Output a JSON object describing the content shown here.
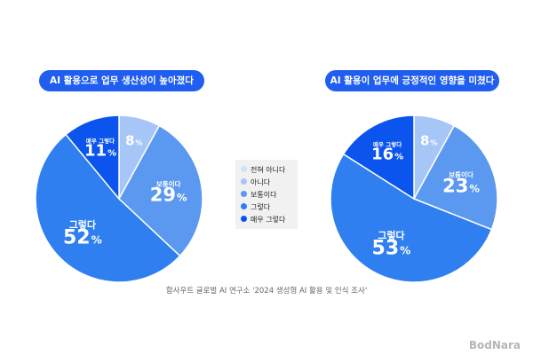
{
  "chart_data": [
    {
      "type": "pie",
      "title": "AI 활용으로 업무 생산성이 높아졌다",
      "slices": [
        {
          "label": "전혀 아니다",
          "value": 0
        },
        {
          "label": "아니다",
          "value": 8,
          "display_label": ""
        },
        {
          "label": "보통이다",
          "value": 29,
          "display_label": "보통이다"
        },
        {
          "label": "그렇다",
          "value": 52,
          "display_label": "그렇다"
        },
        {
          "label": "매우 그렇다",
          "value": 11,
          "display_label": "매우 그렇다"
        }
      ]
    },
    {
      "type": "pie",
      "title": "AI 활용이 업무에 긍정적인 영향을 미쳤다",
      "slices": [
        {
          "label": "전혀 아니다",
          "value": 0
        },
        {
          "label": "아니다",
          "value": 8,
          "display_label": ""
        },
        {
          "label": "보통이다",
          "value": 23,
          "display_label": "보통이다"
        },
        {
          "label": "그렇다",
          "value": 53,
          "display_label": "그렇다"
        },
        {
          "label": "매우 그렇다",
          "value": 16,
          "display_label": "매우 그렇다"
        }
      ]
    }
  ],
  "legend": {
    "items": [
      {
        "label": "전혀 아니다",
        "color": "#cfe0fb"
      },
      {
        "label": "아니다",
        "color": "#a6c6f7"
      },
      {
        "label": "보통이다",
        "color": "#5b98f0"
      },
      {
        "label": "그렇다",
        "color": "#2f7ff0"
      },
      {
        "label": "매우 그렇다",
        "color": "#0b55ee"
      }
    ]
  },
  "source": "함사우트 글로벌 AI 연구소 '2024 생성형 AI 활용 및 인식 조사'",
  "logo": "BodNara",
  "percent_sign": "%"
}
